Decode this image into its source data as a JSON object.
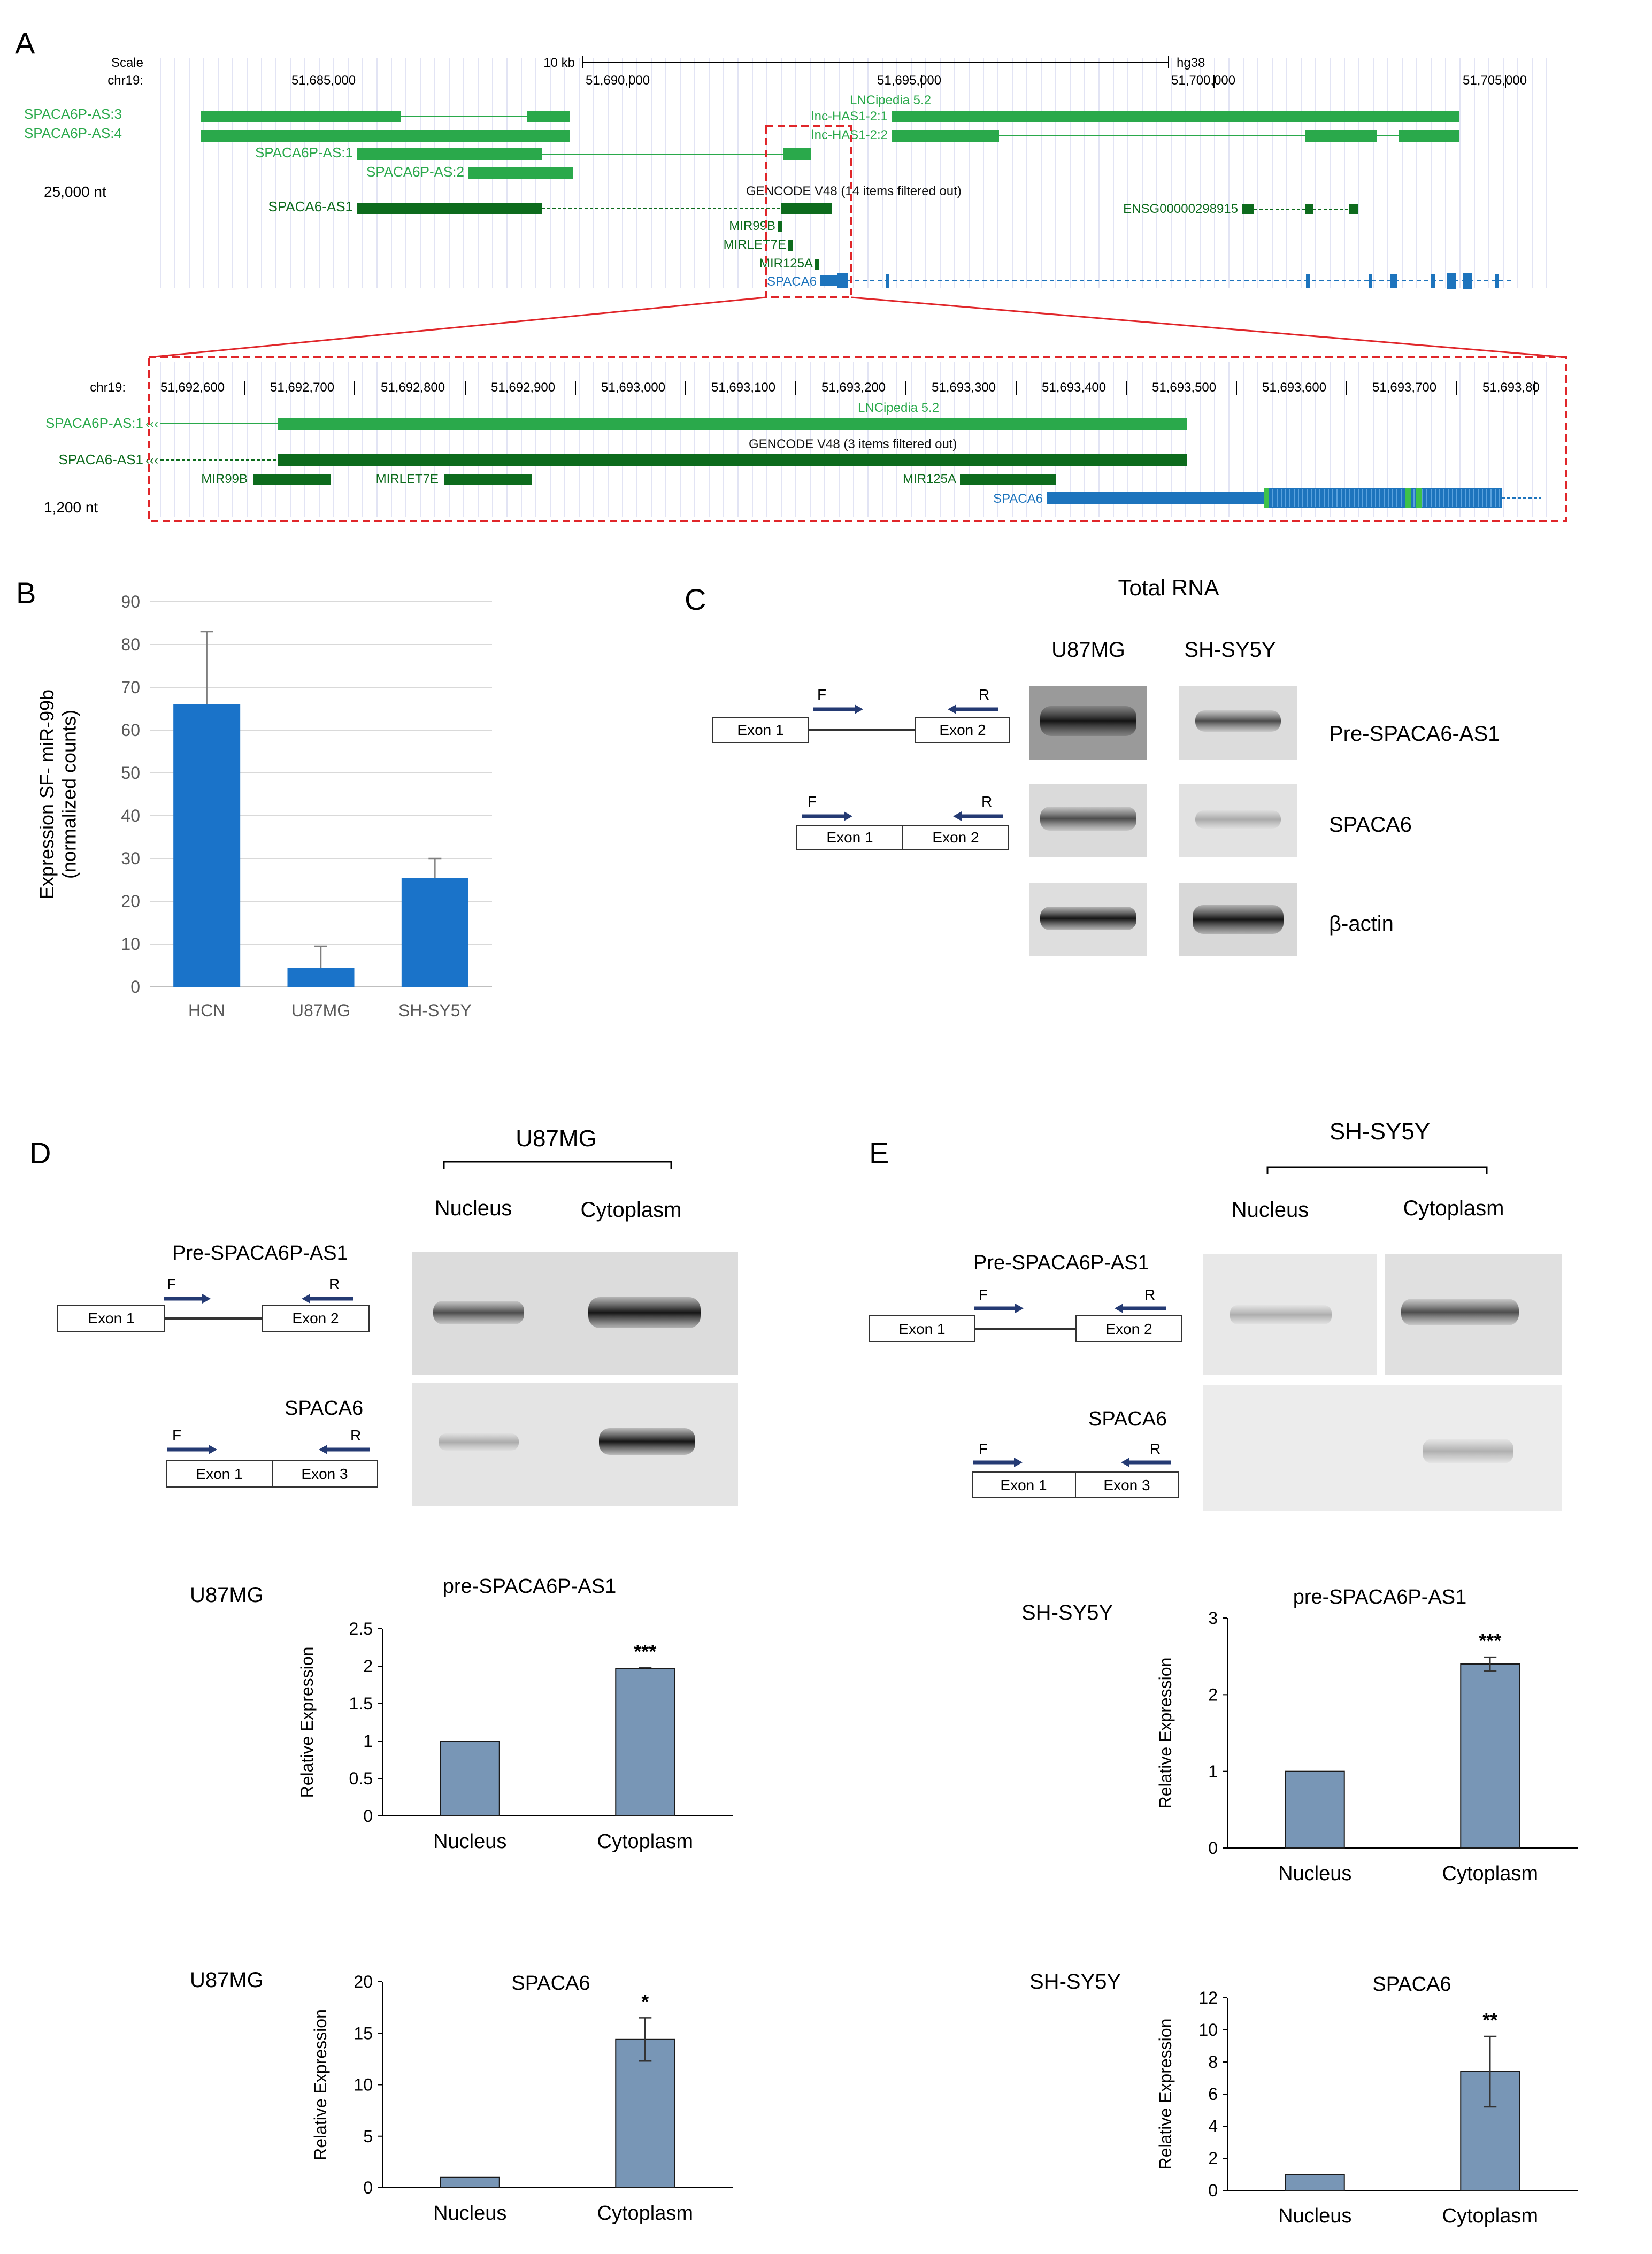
{
  "panels": {
    "A": "A",
    "B": "B",
    "C": "C",
    "D": "D",
    "E": "E"
  },
  "colors": {
    "light_green": "#2aa94b",
    "dark_green": "#0d6b1d",
    "blue": "#1d74bd",
    "bar_blue": "#1a73c9",
    "bar_slate": "#7896b6",
    "red": "#e0262a"
  },
  "browser_top": {
    "scale_label": "Scale",
    "chr_label": "chr19:",
    "scale_bar_text": "10 kb",
    "assembly": "hg38",
    "positions": [
      "51,685,000",
      "51,690,000",
      "51,695,000",
      "51,700,000",
      "51,705,000"
    ],
    "lncipedia": "LNCipedia 5.2",
    "gencode": "GENCODE V48 (14 items filtered out)",
    "nt_label": "25,000 nt",
    "tracks": {
      "spaca6p_as3": "SPACA6P-AS:3",
      "spaca6p_as4": "SPACA6P-AS:4",
      "lnc_has1_1": "lnc-HAS1-2:1",
      "lnc_has1_2": "lnc-HAS1-2:2",
      "spaca6p_as1": "SPACA6P-AS:1",
      "spaca6p_as2": "SPACA6P-AS:2",
      "spaca6_as1": "SPACA6-AS1",
      "ensg": "ENSG00000298915",
      "mir99b": "MIR99B",
      "mirlet7e": "MIRLET7E",
      "mir125a": "MIR125A",
      "spaca6": "SPACA6"
    }
  },
  "browser_zoom": {
    "chr_label": "chr19:",
    "positions": [
      "51,692,600",
      "51,692,700",
      "51,692,800",
      "51,692,900",
      "51,693,000",
      "51,693,100",
      "51,693,200",
      "51,693,300",
      "51,693,400",
      "51,693,500",
      "51,693,600",
      "51,693,700",
      "51,693,80"
    ],
    "lncipedia": "LNCipedia 5.2",
    "gencode": "GENCODE V48 (3 items filtered out)",
    "nt_label": "1,200 nt",
    "tracks": {
      "spaca6p_as1": "SPACA6P-AS:1",
      "spaca6_as1": "SPACA6-AS1",
      "mir99b": "MIR99B",
      "mirlet7e": "MIRLET7E",
      "mir125a": "MIR125A",
      "spaca6": "SPACA6"
    }
  },
  "panel_c": {
    "title": "Total RNA",
    "cell_lines": [
      "U87MG",
      "SH-SY5Y"
    ],
    "rows": [
      "Pre-SPACA6-AS1",
      "SPACA6",
      "β-actin"
    ],
    "schematic": {
      "exon1": "Exon 1",
      "exon2": "Exon 2",
      "forward": "F",
      "reverse": "R"
    }
  },
  "panel_d": {
    "cell_line": "U87MG",
    "fractions": [
      "Nucleus",
      "Cytoplasm"
    ],
    "gene1": "Pre-SPACA6P-AS1",
    "gene2": "SPACA6",
    "schematic": {
      "exon1": "Exon 1",
      "exon2": "Exon 2",
      "exon3": "Exon 3",
      "forward": "F",
      "reverse": "R"
    }
  },
  "panel_e": {
    "cell_line": "SH-SY5Y",
    "fractions": [
      "Nucleus",
      "Cytoplasm"
    ],
    "gene1": "Pre-SPACA6P-AS1",
    "gene2": "SPACA6",
    "schematic": {
      "exon1": "Exon 1",
      "exon2": "Exon 2",
      "exon3": "Exon 3",
      "forward": "F",
      "reverse": "R"
    }
  },
  "chart_data": [
    {
      "id": "B",
      "type": "bar",
      "categories": [
        "HCN",
        "U87MG",
        "SH-SY5Y"
      ],
      "values": [
        66,
        4.5,
        25.5
      ],
      "errors": [
        17,
        5,
        4.5
      ],
      "title": "",
      "xlabel": "",
      "ylabel": "Expression SF- miR-99b (normalized counts)",
      "ylim": [
        0,
        90
      ],
      "yticks": [
        "0",
        "10",
        "20",
        "30",
        "40",
        "50",
        "60",
        "70",
        "80",
        "90"
      ],
      "grid": true
    },
    {
      "id": "D1",
      "type": "bar",
      "side_label": "U87MG",
      "title": "pre-SPACA6P-AS1",
      "ylabel": "Relative Expression",
      "categories": [
        "Nucleus",
        "Cytoplasm"
      ],
      "values": [
        1,
        1.97
      ],
      "errors": [
        0,
        0.01
      ],
      "ylim": [
        0,
        2.5
      ],
      "yticks": [
        "0",
        "0.5",
        "1",
        "1.5",
        "2",
        "2.5"
      ],
      "significance": [
        "",
        "***"
      ]
    },
    {
      "id": "D2",
      "type": "bar",
      "side_label": "U87MG",
      "title": "SPACA6",
      "ylabel": "Relative Expression",
      "categories": [
        "Nucleus",
        "Cytoplasm"
      ],
      "values": [
        1,
        14.4
      ],
      "errors": [
        0,
        2.1
      ],
      "ylim": [
        0,
        20
      ],
      "yticks": [
        "0",
        "5",
        "10",
        "15",
        "20"
      ],
      "significance": [
        "",
        "*"
      ]
    },
    {
      "id": "E1",
      "type": "bar",
      "side_label": "SH-SY5Y",
      "title": "pre-SPACA6P-AS1",
      "ylabel": "Relative Expression",
      "categories": [
        "Nucleus",
        "Cytoplasm"
      ],
      "values": [
        1,
        2.4
      ],
      "errors": [
        0,
        0.09
      ],
      "ylim": [
        0,
        3
      ],
      "yticks": [
        "0",
        "1",
        "2",
        "3"
      ],
      "significance": [
        "",
        "***"
      ]
    },
    {
      "id": "E2",
      "type": "bar",
      "side_label": "SH-SY5Y",
      "title": "SPACA6",
      "ylabel": "Relative Expression",
      "categories": [
        "Nucleus",
        "Cytoplasm"
      ],
      "values": [
        1,
        7.4
      ],
      "errors": [
        0,
        2.2
      ],
      "ylim": [
        0,
        12
      ],
      "yticks": [
        "0",
        "2",
        "4",
        "6",
        "8",
        "10",
        "12"
      ],
      "significance": [
        "",
        "**"
      ]
    }
  ]
}
